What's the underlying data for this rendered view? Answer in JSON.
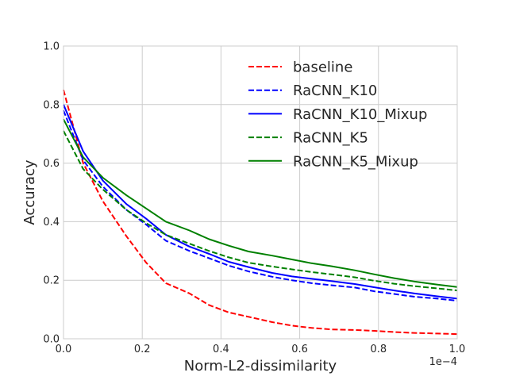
{
  "chart_data": {
    "type": "line",
    "title": "",
    "xlabel": "Norm-L2-dissimilarity",
    "ylabel": "Accuracy",
    "x_offset_text": "1e−4",
    "xlim": [
      0.0,
      1.0
    ],
    "ylim": [
      0.0,
      1.0
    ],
    "x_ticks": [
      0.0,
      0.2,
      0.4,
      0.6,
      0.8,
      1.0
    ],
    "y_ticks": [
      0.0,
      0.2,
      0.4,
      0.6,
      0.8,
      1.0
    ],
    "x_tick_labels": [
      "0.0",
      "0.2",
      "0.4",
      "0.6",
      "0.8",
      "1.0"
    ],
    "y_tick_labels": [
      "0.0",
      "0.2",
      "0.4",
      "0.6",
      "0.8",
      "1.0"
    ],
    "grid": true,
    "legend_position": "upper-right",
    "series": [
      {
        "name": "baseline",
        "color": "#ff0000",
        "style": "dashed",
        "x": [
          0.0,
          0.05,
          0.1,
          0.16,
          0.21,
          0.26,
          0.32,
          0.37,
          0.42,
          0.47,
          0.53,
          0.58,
          0.63,
          0.68,
          0.74,
          0.79,
          0.84,
          0.89,
          0.95,
          1.0
        ],
        "y": [
          0.85,
          0.6,
          0.47,
          0.35,
          0.26,
          0.19,
          0.155,
          0.115,
          0.09,
          0.075,
          0.057,
          0.045,
          0.037,
          0.032,
          0.03,
          0.027,
          0.023,
          0.02,
          0.018,
          0.016
        ]
      },
      {
        "name": "RaCNN_K10",
        "color": "#0000ff",
        "style": "dashed",
        "x": [
          0.0,
          0.05,
          0.1,
          0.16,
          0.21,
          0.26,
          0.32,
          0.37,
          0.42,
          0.47,
          0.53,
          0.58,
          0.63,
          0.68,
          0.74,
          0.79,
          0.84,
          0.89,
          0.95,
          1.0
        ],
        "y": [
          0.78,
          0.61,
          0.52,
          0.44,
          0.39,
          0.335,
          0.3,
          0.275,
          0.25,
          0.23,
          0.212,
          0.2,
          0.19,
          0.183,
          0.175,
          0.162,
          0.153,
          0.144,
          0.137,
          0.13
        ]
      },
      {
        "name": "RaCNN_K10_Mixup",
        "color": "#0000ff",
        "style": "solid",
        "x": [
          0.0,
          0.05,
          0.1,
          0.16,
          0.21,
          0.26,
          0.32,
          0.37,
          0.42,
          0.47,
          0.53,
          0.58,
          0.63,
          0.68,
          0.74,
          0.79,
          0.84,
          0.89,
          0.95,
          1.0
        ],
        "y": [
          0.8,
          0.64,
          0.54,
          0.46,
          0.41,
          0.355,
          0.315,
          0.29,
          0.263,
          0.245,
          0.225,
          0.213,
          0.205,
          0.197,
          0.187,
          0.176,
          0.165,
          0.155,
          0.145,
          0.137
        ]
      },
      {
        "name": "RaCNN_K5",
        "color": "#008000",
        "style": "dashed",
        "x": [
          0.0,
          0.05,
          0.1,
          0.16,
          0.21,
          0.26,
          0.32,
          0.37,
          0.42,
          0.47,
          0.53,
          0.58,
          0.63,
          0.68,
          0.74,
          0.79,
          0.84,
          0.89,
          0.95,
          1.0
        ],
        "y": [
          0.71,
          0.58,
          0.51,
          0.44,
          0.395,
          0.355,
          0.325,
          0.3,
          0.278,
          0.26,
          0.247,
          0.237,
          0.228,
          0.22,
          0.21,
          0.198,
          0.188,
          0.18,
          0.172,
          0.165
        ]
      },
      {
        "name": "RaCNN_K5_Mixup",
        "color": "#008000",
        "style": "solid",
        "x": [
          0.0,
          0.05,
          0.1,
          0.16,
          0.21,
          0.26,
          0.32,
          0.37,
          0.42,
          0.47,
          0.53,
          0.58,
          0.63,
          0.68,
          0.74,
          0.79,
          0.84,
          0.89,
          0.95,
          1.0
        ],
        "y": [
          0.75,
          0.62,
          0.55,
          0.49,
          0.445,
          0.4,
          0.37,
          0.34,
          0.318,
          0.298,
          0.284,
          0.271,
          0.258,
          0.248,
          0.234,
          0.22,
          0.207,
          0.196,
          0.185,
          0.177
        ]
      }
    ]
  }
}
